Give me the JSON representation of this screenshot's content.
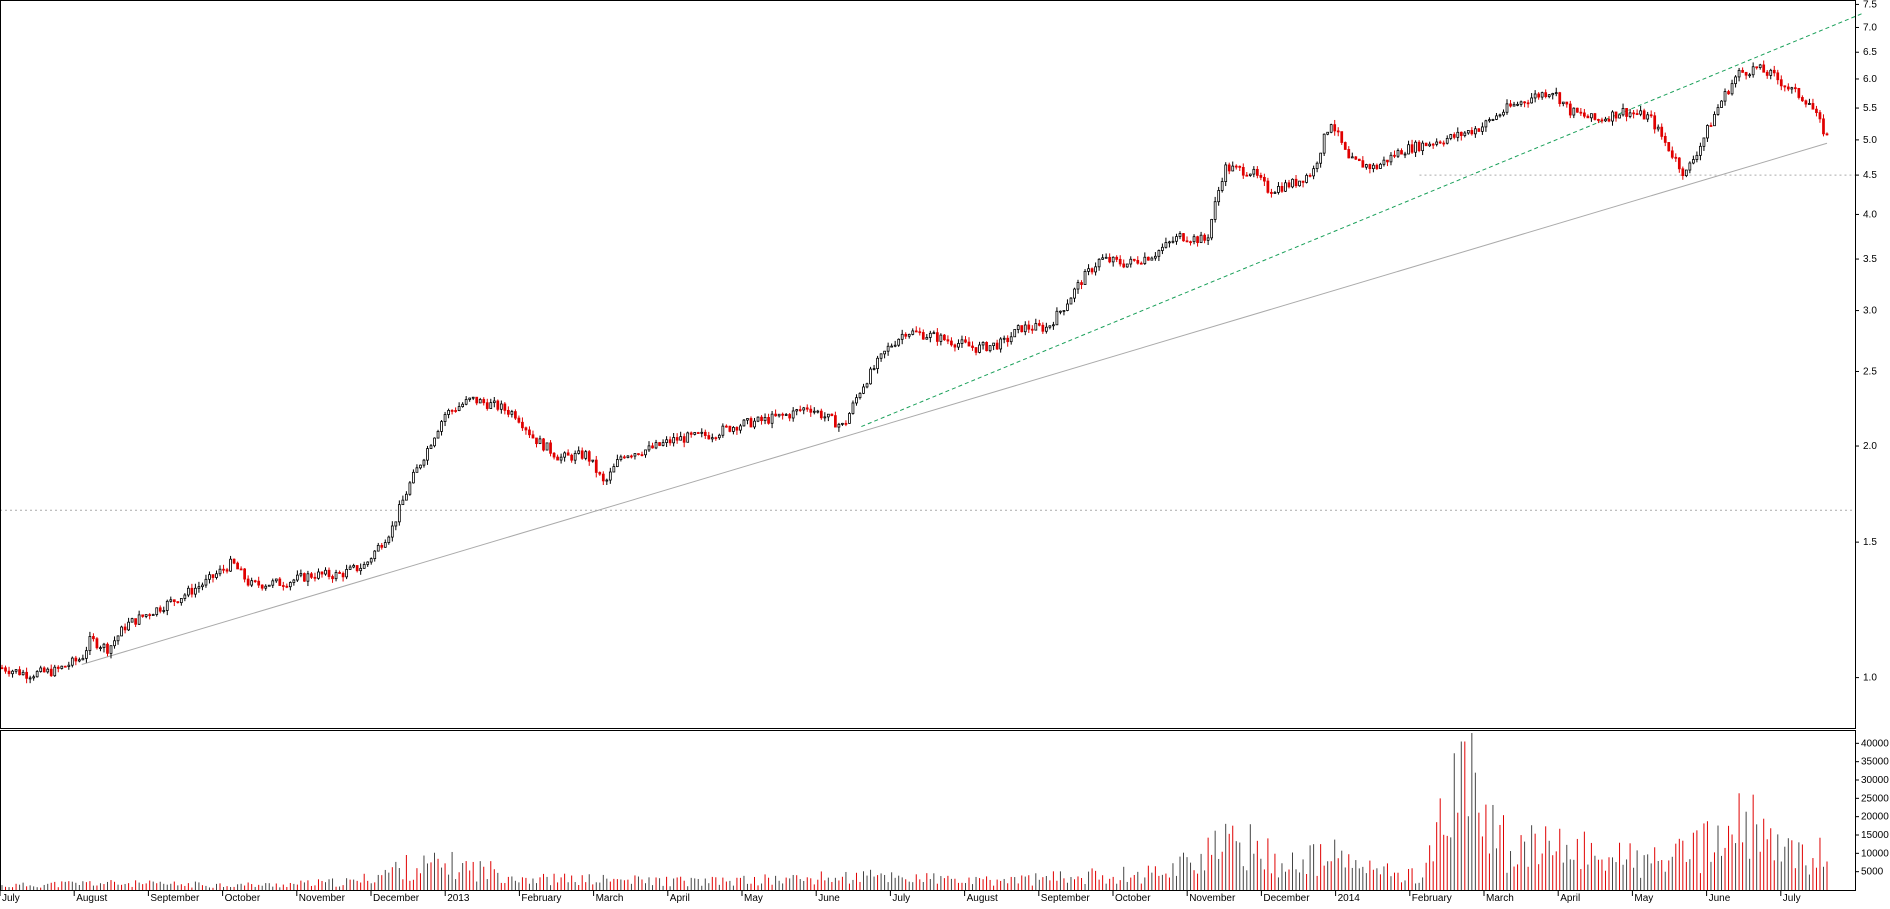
{
  "chart_data": [
    {
      "type": "candlestick",
      "panel": "price",
      "scale": "log",
      "ylim": [
        0.86,
        7.6
      ],
      "y_ticks": [
        "1.0",
        "1.5",
        "2.0",
        "2.5",
        "3.0",
        "3.5",
        "4.0",
        "4.5",
        "5.0",
        "5.5",
        "6.0",
        "6.5",
        "7.0",
        "7.5"
      ],
      "x_ticks": [
        "July",
        "August",
        "September",
        "October",
        "November",
        "December",
        "2013",
        "February",
        "March",
        "April",
        "May",
        "June",
        "July",
        "August",
        "September",
        "October",
        "November",
        "December",
        "2014",
        "February",
        "March",
        "April",
        "May",
        "June",
        "July"
      ],
      "grid": false,
      "colors": {
        "up": "#000000",
        "down": "#e00000",
        "up_fill": "#ffffff",
        "trendline": "#aaaaaa",
        "channel": "#1aa05a",
        "support": "#aaaaaa"
      },
      "series": [
        {
          "values": [
            [
              0,
              1.03
            ],
            [
              0.03,
              1.01
            ],
            [
              0.06,
              1.02
            ],
            [
              0.09,
              1.06
            ],
            [
              0.1,
              1.12
            ],
            [
              0.12,
              1.09
            ],
            [
              0.14,
              1.17
            ],
            [
              0.17,
              1.22
            ],
            [
              0.2,
              1.27
            ],
            [
              0.23,
              1.33
            ],
            [
              0.26,
              1.41
            ],
            [
              0.28,
              1.32
            ],
            [
              0.32,
              1.33
            ],
            [
              0.35,
              1.36
            ],
            [
              0.38,
              1.36
            ],
            [
              0.41,
              1.4
            ],
            [
              0.44,
              1.56
            ],
            [
              0.46,
              1.78
            ],
            [
              0.48,
              1.98
            ],
            [
              0.5,
              2.2
            ],
            [
              0.53,
              2.3
            ],
            [
              0.56,
              2.25
            ],
            [
              0.58,
              2.2
            ],
            [
              0.6,
              2.05
            ],
            [
              0.63,
              1.93
            ],
            [
              0.66,
              1.95
            ],
            [
              0.68,
              1.78
            ],
            [
              0.7,
              1.95
            ],
            [
              0.73,
              1.98
            ],
            [
              0.76,
              2.04
            ],
            [
              0.8,
              2.07
            ],
            [
              0.83,
              2.13
            ],
            [
              0.86,
              2.16
            ],
            [
              0.89,
              2.2
            ],
            [
              0.91,
              2.25
            ],
            [
              0.93,
              2.18
            ],
            [
              0.95,
              2.12
            ],
            [
              0.97,
              2.38
            ],
            [
              1,
              2.68
            ],
            [
              1.02,
              2.82
            ],
            [
              1.05,
              2.78
            ],
            [
              1.08,
              2.72
            ],
            [
              1.1,
              2.68
            ],
            [
              1.13,
              2.72
            ],
            [
              1.15,
              2.85
            ],
            [
              1.18,
              2.85
            ],
            [
              1.2,
              3.05
            ],
            [
              1.22,
              3.3
            ],
            [
              1.24,
              3.5
            ],
            [
              1.27,
              3.45
            ],
            [
              1.3,
              3.55
            ],
            [
              1.33,
              3.75
            ],
            [
              1.36,
              3.7
            ],
            [
              1.38,
              4.6
            ],
            [
              1.41,
              4.55
            ],
            [
              1.43,
              4.3
            ],
            [
              1.46,
              4.4
            ],
            [
              1.48,
              4.55
            ],
            [
              1.5,
              5.3
            ],
            [
              1.52,
              4.7
            ],
            [
              1.55,
              4.6
            ],
            [
              1.58,
              4.85
            ],
            [
              1.61,
              4.95
            ],
            [
              1.64,
              5.05
            ],
            [
              1.67,
              5.2
            ],
            [
              1.7,
              5.5
            ],
            [
              1.73,
              5.7
            ],
            [
              1.75,
              5.8
            ],
            [
              1.77,
              5.45
            ],
            [
              1.8,
              5.3
            ],
            [
              1.83,
              5.45
            ],
            [
              1.86,
              5.35
            ],
            [
              1.88,
              4.9
            ],
            [
              1.9,
              4.5
            ],
            [
              1.92,
              5.0
            ],
            [
              1.94,
              5.6
            ],
            [
              1.96,
              6.1
            ],
            [
              1.98,
              6.2
            ],
            [
              2.0,
              6.05
            ],
            [
              2.02,
              5.8
            ],
            [
              2.04,
              5.6
            ],
            [
              2.05,
              5.3
            ],
            [
              2.06,
              5.05
            ]
          ]
        }
      ]
    },
    {
      "type": "bar",
      "panel": "volume",
      "ylim": [
        0,
        42000
      ],
      "y_ticks": [
        "5000",
        "10000",
        "15000",
        "20000",
        "25000",
        "30000",
        "35000",
        "40000"
      ],
      "series": [
        {
          "values": [
            [
              0,
              1500
            ],
            [
              0.1,
              2500
            ],
            [
              0.2,
              2000
            ],
            [
              0.3,
              1800
            ],
            [
              0.4,
              3000
            ],
            [
              0.45,
              8000
            ],
            [
              0.5,
              9000
            ],
            [
              0.55,
              7000
            ],
            [
              0.6,
              4000
            ],
            [
              0.7,
              3500
            ],
            [
              0.8,
              3000
            ],
            [
              0.9,
              4000
            ],
            [
              1.0,
              5000
            ],
            [
              1.1,
              3000
            ],
            [
              1.2,
              4500
            ],
            [
              1.3,
              6000
            ],
            [
              1.35,
              12000
            ],
            [
              1.4,
              17000
            ],
            [
              1.45,
              9000
            ],
            [
              1.5,
              12000
            ],
            [
              1.55,
              7000
            ],
            [
              1.6,
              5000
            ],
            [
              1.65,
              40500
            ],
            [
              1.7,
              15000
            ],
            [
              1.8,
              14000
            ],
            [
              1.85,
              10000
            ],
            [
              1.9,
              12000
            ],
            [
              1.95,
              20000
            ],
            [
              1.97,
              24500
            ],
            [
              2.0,
              14000
            ],
            [
              2.06,
              12000
            ]
          ]
        }
      ]
    }
  ]
}
